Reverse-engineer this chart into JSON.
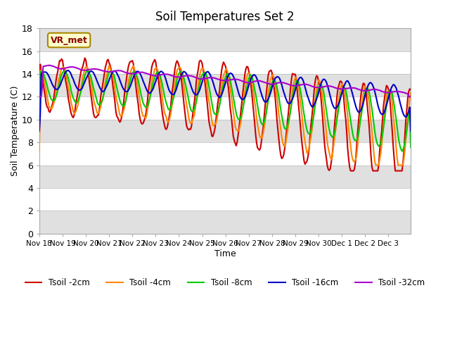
{
  "title": "Soil Temperatures Set 2",
  "xlabel": "Time",
  "ylabel": "Soil Temperature (C)",
  "ylim": [
    0,
    18
  ],
  "yticks": [
    0,
    2,
    4,
    6,
    8,
    10,
    12,
    14,
    16,
    18
  ],
  "annotation": "VR_met",
  "bg_color": "#ffffff",
  "band_color": "#e0e0e0",
  "series": [
    {
      "label": "Tsoil -2cm",
      "color": "#cc0000",
      "lw": 1.5
    },
    {
      "label": "Tsoil -4cm",
      "color": "#ff8800",
      "lw": 1.5
    },
    {
      "label": "Tsoil -8cm",
      "color": "#00cc00",
      "lw": 1.5
    },
    {
      "label": "Tsoil -16cm",
      "color": "#0000cc",
      "lw": 1.5
    },
    {
      "label": "Tsoil -32cm",
      "color": "#aa00cc",
      "lw": 1.5
    }
  ],
  "xtick_labels": [
    "Nov 18",
    "Nov 19",
    "Nov 20",
    "Nov 21",
    "Nov 22",
    "Nov 23",
    "Nov 24",
    "Nov 25",
    "Nov 26",
    "Nov 27",
    "Nov 28",
    "Nov 29",
    "Nov 30",
    "Dec 1",
    "Dec 2",
    "Dec 3"
  ],
  "xtick_positions": [
    0,
    24,
    48,
    72,
    96,
    120,
    144,
    168,
    192,
    216,
    240,
    264,
    288,
    312,
    336,
    360
  ]
}
